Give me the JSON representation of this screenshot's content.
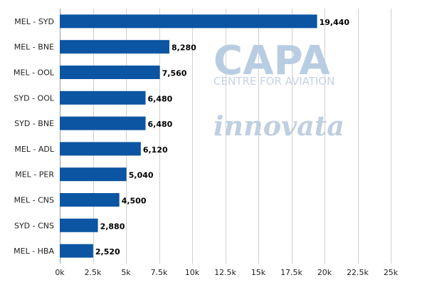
{
  "chart_data": {
    "type": "bar",
    "orientation": "horizontal",
    "categories": [
      "MEL - SYD",
      "MEL - BNE",
      "MEL - OOL",
      "SYD - OOL",
      "SYD - BNE",
      "MEL - ADL",
      "MEL - PER",
      "MEL - CNS",
      "SYD - CNS",
      "MEL - HBA"
    ],
    "values": [
      19440,
      8280,
      7560,
      6480,
      6480,
      6120,
      5040,
      4500,
      2880,
      2520
    ],
    "value_labels": [
      "19,440",
      "8,280",
      "7,560",
      "6,480",
      "6,480",
      "6,120",
      "5,040",
      "4,500",
      "2,880",
      "2,520"
    ],
    "title": "",
    "xlabel": "",
    "ylabel": "",
    "xlim": [
      0,
      25000
    ],
    "x_ticks": [
      0,
      2500,
      5000,
      7500,
      10000,
      12500,
      15000,
      17500,
      20000,
      22500,
      25000
    ],
    "x_tick_labels": [
      "0k",
      "2.5k",
      "5k",
      "7.5k",
      "10k",
      "12.5k",
      "15k",
      "17.5k",
      "20k",
      "22.5k",
      "25k"
    ],
    "grid": true,
    "bar_color": "#0b55a2"
  },
  "watermark": {
    "capa": "CAPA",
    "capa_sub": "CENTRE FOR AVIATION",
    "innovata": "innovata"
  }
}
